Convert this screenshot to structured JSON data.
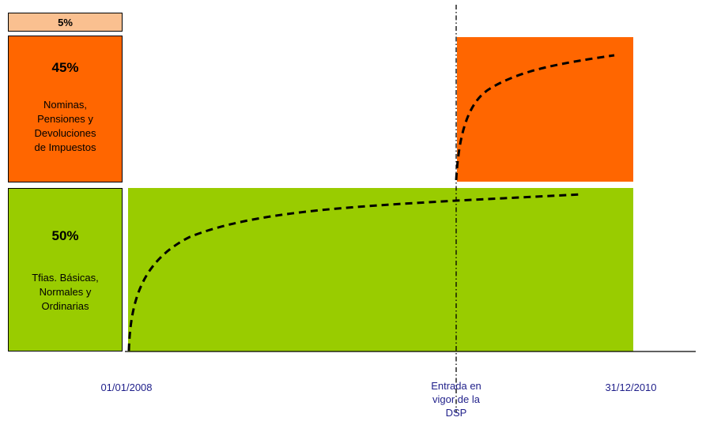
{
  "legend": {
    "top_box": {
      "percent": "5%",
      "color": "#fac090"
    },
    "middle_box": {
      "percent": "45%",
      "lines": [
        "Nominas,",
        "Pensiones y",
        "Devoluciones",
        "de Impuestos"
      ],
      "color": "#ff6600"
    },
    "bottom_box": {
      "percent": "50%",
      "lines": [
        "Tfias. Básicas,",
        "Normales y",
        "Ordinarias"
      ],
      "color": "#99cc00"
    }
  },
  "timeline": {
    "start_label": "01/01/2008",
    "milestone_lines": [
      "Entrada en",
      "vigor de la",
      "DSP"
    ],
    "end_label": "31/12/2010",
    "label_color": "#1f1f8a"
  }
}
